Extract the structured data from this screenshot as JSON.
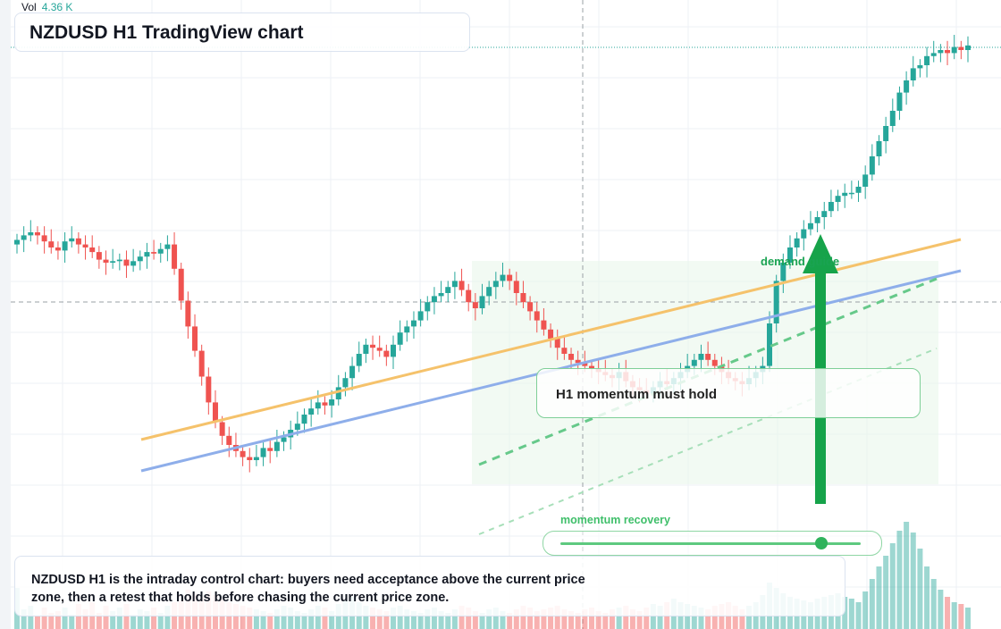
{
  "header": {
    "vol_label": "Vol",
    "vol_value": "4.36 K",
    "title": "NZDUSD H1 TradingView chart"
  },
  "annotations": {
    "callout": "H1 momentum must hold",
    "demand_label": "demand guide",
    "momentum_label": "momentum recovery",
    "momentum_level": 0.87,
    "note": "NZDUSD H1 is the intraday control chart: buyers need acceptance above the current price zone, then a retest that holds before chasing the current price zone."
  },
  "colors": {
    "up": "#26a69a",
    "down": "#ef5350",
    "trend_orange": "#f5c26b",
    "trend_blue": "#8eaeea",
    "guide_green": "#66c98a",
    "arrow_green": "#16a34a",
    "zone": "#e8f5ea"
  },
  "chart_data": {
    "type": "candlestick",
    "instrument": "NZDUSD",
    "timeframe": "H1",
    "volume_indicator": "4.36 K",
    "series": [
      {
        "name": "price",
        "close_path": [
          35,
          38,
          40,
          38,
          34,
          30,
          28,
          34,
          36,
          32,
          30,
          27,
          22,
          20,
          21,
          22,
          18,
          21,
          24,
          27,
          26,
          29,
          32,
          16,
          -5,
          -22,
          -38,
          -55,
          -72,
          -85,
          -94,
          -100,
          -104,
          -108,
          -110,
          -108,
          -102,
          -104,
          -98,
          -95,
          -90,
          -86,
          -80,
          -76,
          -72,
          -74,
          -70,
          -62,
          -56,
          -48,
          -40,
          -34,
          -36,
          -38,
          -42,
          -34,
          -26,
          -22,
          -18,
          -12,
          -6,
          -2,
          0,
          4,
          8,
          2,
          -6,
          -10,
          -2,
          4,
          8,
          12,
          8,
          0,
          -6,
          -12,
          -18,
          -24,
          -30,
          -36,
          -40,
          -44,
          -46,
          -48,
          -50,
          -52,
          -54,
          -56,
          -52,
          -58,
          -62,
          -64,
          -66,
          -62,
          -58,
          -60,
          -56,
          -52,
          -48,
          -44,
          -40,
          -44,
          -48,
          -52,
          -56,
          -58,
          -60,
          -56,
          -52,
          -48,
          -20,
          8,
          20,
          30,
          36,
          42,
          46,
          50,
          54,
          60,
          64,
          66,
          66,
          70,
          78,
          90,
          100,
          110,
          120,
          132,
          140,
          148,
          150,
          156,
          158,
          160,
          158,
          162,
          160,
          163
        ]
      }
    ],
    "volume": [
      {
        "name": "volume",
        "values": [
          46,
          22,
          26,
          14,
          24,
          18,
          20,
          24,
          16,
          28,
          22,
          30,
          18,
          26,
          20,
          24,
          28,
          16,
          22,
          20,
          24,
          18,
          26,
          30,
          38,
          44,
          40,
          36,
          42,
          38,
          34,
          30,
          28,
          26,
          24,
          22,
          20,
          18,
          22,
          26,
          24,
          20,
          18,
          22,
          26,
          24,
          20,
          28,
          32,
          36,
          30,
          26,
          24,
          22,
          20,
          24,
          26,
          22,
          20,
          18,
          22,
          24,
          20,
          18,
          22,
          26,
          24,
          20,
          18,
          22,
          24,
          20,
          18,
          22,
          26,
          24,
          20,
          22,
          24,
          26,
          22,
          20,
          18,
          22,
          24,
          20,
          18,
          22,
          24,
          26,
          22,
          20,
          24,
          28,
          26,
          30,
          34,
          30,
          28,
          26,
          24,
          22,
          26,
          28,
          30,
          26,
          22,
          26,
          30,
          38,
          52,
          46,
          40,
          36,
          34,
          32,
          30,
          34,
          36,
          38,
          40,
          36,
          34,
          30,
          42,
          56,
          70,
          82,
          96,
          110,
          120,
          108,
          90,
          70,
          56,
          44,
          36,
          30,
          28,
          24
        ]
      }
    ],
    "overlays": [
      "orange rising trendline",
      "blue rising trendline",
      "green dashed guide",
      "light green dashed guide",
      "demand zone",
      "green up arrow"
    ],
    "grid": true,
    "legend": "none"
  }
}
